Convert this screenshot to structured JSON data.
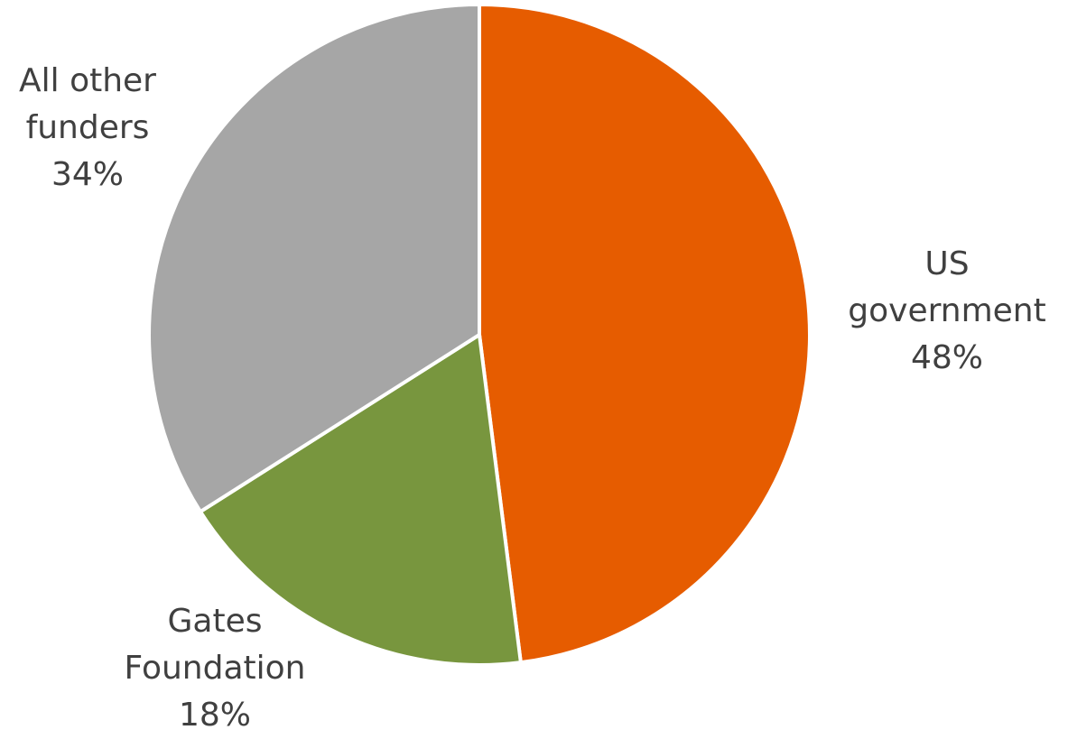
{
  "chart_data": {
    "type": "pie",
    "title": "",
    "slices": [
      {
        "name": "US government",
        "label_lines": [
          "US",
          "government"
        ],
        "value": 48,
        "percent_label": "48%",
        "color": "#E65C00"
      },
      {
        "name": "Gates Foundation",
        "label_lines": [
          "Gates",
          "Foundation"
        ],
        "value": 18,
        "percent_label": "18%",
        "color": "#78963E"
      },
      {
        "name": "All other funders",
        "label_lines": [
          "All other",
          "funders"
        ],
        "value": 34,
        "percent_label": "34%",
        "color": "#A6A6A6"
      }
    ],
    "start_angle": "12 o'clock",
    "direction": "clockwise",
    "slice_separator_color": "#FFFFFF",
    "legend": "none"
  }
}
